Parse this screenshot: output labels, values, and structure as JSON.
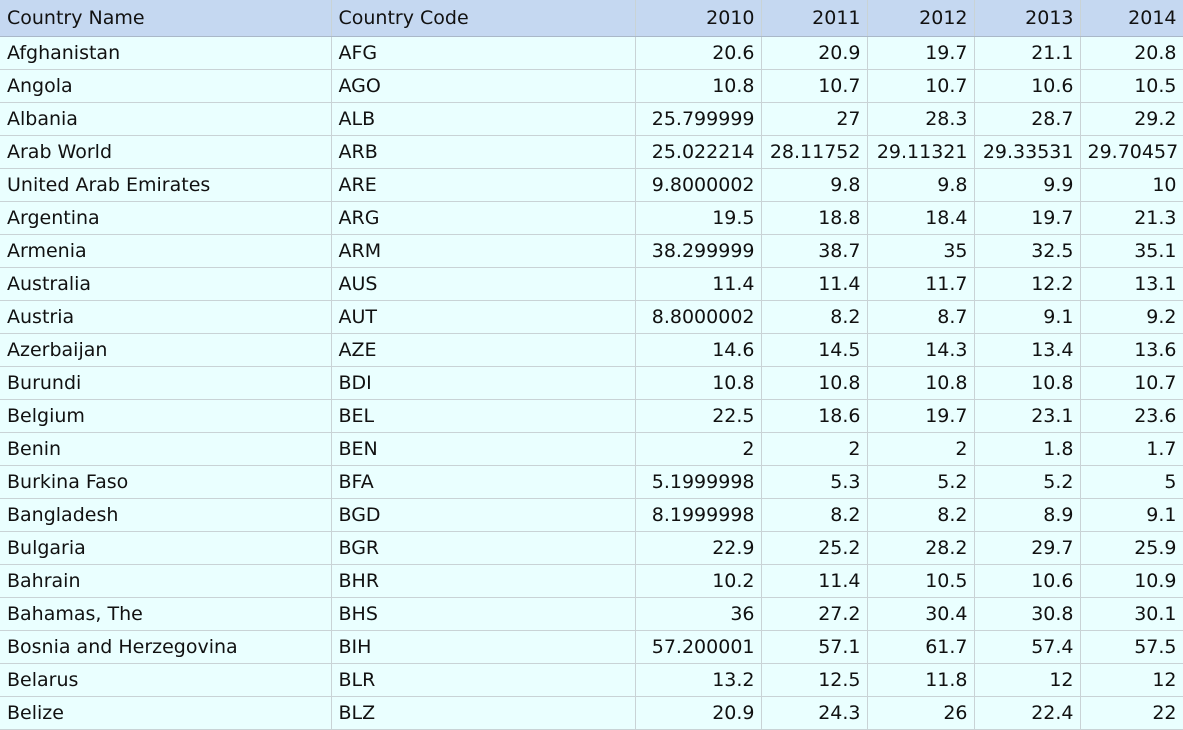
{
  "table": {
    "headers": [
      "Country Name",
      "Country Code",
      "2010",
      "2011",
      "2012",
      "2013",
      "2014"
    ],
    "rows": [
      [
        "Afghanistan",
        "AFG",
        "20.6",
        "20.9",
        "19.7",
        "21.1",
        "20.8"
      ],
      [
        "Angola",
        "AGO",
        "10.8",
        "10.7",
        "10.7",
        "10.6",
        "10.5"
      ],
      [
        "Albania",
        "ALB",
        "25.799999",
        "27",
        "28.3",
        "28.7",
        "29.2"
      ],
      [
        "Arab World",
        "ARB",
        "25.022214",
        "28.11752",
        "29.11321",
        "29.33531",
        "29.70457"
      ],
      [
        "United Arab Emirates",
        "ARE",
        "9.8000002",
        "9.8",
        "9.8",
        "9.9",
        "10"
      ],
      [
        "Argentina",
        "ARG",
        "19.5",
        "18.8",
        "18.4",
        "19.7",
        "21.3"
      ],
      [
        "Armenia",
        "ARM",
        "38.299999",
        "38.7",
        "35",
        "32.5",
        "35.1"
      ],
      [
        "Australia",
        "AUS",
        "11.4",
        "11.4",
        "11.7",
        "12.2",
        "13.1"
      ],
      [
        "Austria",
        "AUT",
        "8.8000002",
        "8.2",
        "8.7",
        "9.1",
        "9.2"
      ],
      [
        "Azerbaijan",
        "AZE",
        "14.6",
        "14.5",
        "14.3",
        "13.4",
        "13.6"
      ],
      [
        "Burundi",
        "BDI",
        "10.8",
        "10.8",
        "10.8",
        "10.8",
        "10.7"
      ],
      [
        "Belgium",
        "BEL",
        "22.5",
        "18.6",
        "19.7",
        "23.1",
        "23.6"
      ],
      [
        "Benin",
        "BEN",
        "2",
        "2",
        "2",
        "1.8",
        "1.7"
      ],
      [
        "Burkina Faso",
        "BFA",
        "5.1999998",
        "5.3",
        "5.2",
        "5.2",
        "5"
      ],
      [
        "Bangladesh",
        "BGD",
        "8.1999998",
        "8.2",
        "8.2",
        "8.9",
        "9.1"
      ],
      [
        "Bulgaria",
        "BGR",
        "22.9",
        "25.2",
        "28.2",
        "29.7",
        "25.9"
      ],
      [
        "Bahrain",
        "BHR",
        "10.2",
        "11.4",
        "10.5",
        "10.6",
        "10.9"
      ],
      [
        "Bahamas, The",
        "BHS",
        "36",
        "27.2",
        "30.4",
        "30.8",
        "30.1"
      ],
      [
        "Bosnia and Herzegovina",
        "BIH",
        "57.200001",
        "57.1",
        "61.7",
        "57.4",
        "57.5"
      ],
      [
        "Belarus",
        "BLR",
        "13.2",
        "12.5",
        "11.8",
        "12",
        "12"
      ],
      [
        "Belize",
        "BLZ",
        "20.9",
        "24.3",
        "26",
        "22.4",
        "22"
      ]
    ]
  },
  "colors": {
    "header_background": "#c5d8f1",
    "cell_background": "#eaffff",
    "gridline": "#c9d3d6"
  }
}
